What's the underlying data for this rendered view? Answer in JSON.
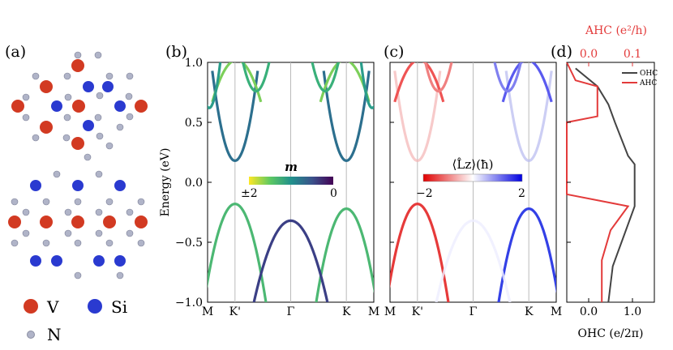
{
  "panel_labels": [
    "(a)",
    "(b)",
    "(c)",
    "(d)"
  ],
  "legend_a": [
    {
      "label": "V",
      "color": "#d23a22"
    },
    {
      "label": "Si",
      "color": "#2a3ad0"
    },
    {
      "label": "N",
      "color": "#b0b4c8"
    }
  ],
  "colorbar_b": {
    "title": "m",
    "left": "±2",
    "right": "0"
  },
  "colorbar_c": {
    "title": "⟨L̂z⟩(ħ)",
    "left": "−2",
    "right": "2"
  },
  "chart_data": [
    {
      "type": "line",
      "panel": "(b)",
      "ylabel": "Energy (eV)",
      "ylim": [
        -1.0,
        1.0
      ],
      "yticks": [
        "1.0",
        "0.5",
        "0.0",
        "−0.5",
        "−1.0"
      ],
      "xticks": [
        "M",
        "K'",
        "Γ",
        "K",
        "M"
      ],
      "series": [
        {
          "name": "conduction K'",
          "x": [
            -0.35,
            0,
            0.35
          ],
          "y": [
            0.85,
            0.18,
            0.85
          ]
        },
        {
          "name": "conduction K",
          "x": [
            -0.35,
            0,
            0.35
          ],
          "y": [
            0.85,
            0.18,
            0.85
          ]
        },
        {
          "name": "valence K'",
          "x": [
            -0.35,
            0,
            0.35
          ],
          "y": [
            -1.0,
            -0.18,
            -1.0
          ]
        },
        {
          "name": "valence K",
          "x": [
            -0.35,
            0,
            0.35
          ],
          "y": [
            -1.0,
            -0.22,
            -1.0
          ]
        },
        {
          "name": "valence Γ",
          "x": [
            -0.45,
            0,
            0.45
          ],
          "y": [
            -1.0,
            -0.32,
            -1.0
          ]
        }
      ]
    },
    {
      "type": "line",
      "panel": "(c)",
      "ylim": [
        -1.0,
        1.0
      ],
      "xticks": [
        "M",
        "K'",
        "Γ",
        "K",
        "M"
      ],
      "series": [
        {
          "name": "valence K' (Lz=-2)",
          "x": [
            -0.35,
            0,
            0.35
          ],
          "y": [
            -1.0,
            -0.18,
            -1.0
          ]
        },
        {
          "name": "valence K (Lz=+2)",
          "x": [
            -0.35,
            0,
            0.35
          ],
          "y": [
            -1.0,
            -0.22,
            -1.0
          ]
        }
      ]
    },
    {
      "type": "line",
      "panel": "(d)",
      "xlabel": "OHC (e/2π)",
      "xticks": [
        "0.0",
        "1.0"
      ],
      "top_xlabel": "AHC (e²/h)",
      "top_xticks": [
        "0.0",
        "0.1"
      ],
      "ylim": [
        -1.0,
        1.0
      ],
      "series": [
        {
          "name": "OHC",
          "color": "#444444",
          "x": [
            0.45,
            0.55,
            0.8,
            1.05,
            1.05,
            0.9,
            0.6,
            0.45,
            0.2,
            -0.3
          ],
          "y": [
            -1.0,
            -0.7,
            -0.45,
            -0.2,
            0.15,
            0.22,
            0.5,
            0.65,
            0.8,
            0.95
          ]
        },
        {
          "name": "AHC",
          "color": "#e33b3b",
          "x": [
            0.03,
            0.03,
            0.05,
            0.09,
            -0.05,
            -0.05,
            0.02,
            0.02,
            -0.03,
            -0.05
          ],
          "y": [
            -1.0,
            -0.65,
            -0.4,
            -0.2,
            -0.1,
            0.5,
            0.55,
            0.8,
            0.85,
            1.0
          ]
        }
      ]
    }
  ]
}
